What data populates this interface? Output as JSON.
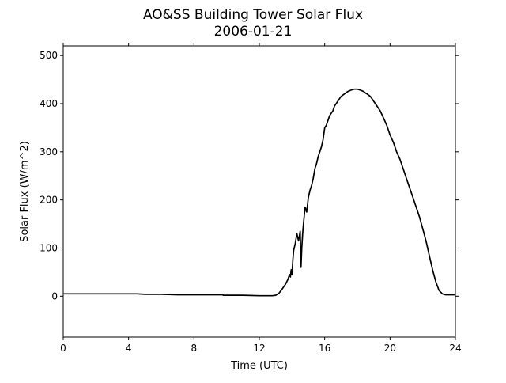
{
  "chart_data": {
    "type": "line",
    "title": "AO&SS Building Tower Solar Flux",
    "subtitle": "2006-01-21",
    "xlabel": "Time (UTC)",
    "ylabel": "Solar Flux (W/m^2)",
    "xlim": [
      0,
      24
    ],
    "ylim": [
      -85,
      520
    ],
    "x_ticks": [
      0,
      4,
      8,
      12,
      16,
      20,
      24
    ],
    "y_ticks": [
      0,
      100,
      200,
      300,
      400,
      500
    ],
    "x_tick_labels": [
      "0",
      "4",
      "8",
      "12",
      "16",
      "20",
      "24"
    ],
    "y_tick_labels": [
      "0",
      "100",
      "200",
      "300",
      "400",
      "500"
    ],
    "grid": false,
    "legend": "none",
    "line_color": "#000000",
    "series": [
      {
        "x": [
          0,
          2,
          4,
          4.5,
          5,
          6,
          7,
          7.5,
          8,
          9,
          9.75,
          9.8,
          10,
          11,
          12,
          12.5,
          12.8,
          13.0,
          13.2,
          13.4,
          13.6,
          13.75,
          13.85,
          13.9,
          13.95,
          14.0,
          14.05,
          14.1,
          14.2,
          14.3,
          14.4,
          14.5,
          14.55,
          14.6,
          14.65,
          14.7,
          14.8,
          14.9,
          15.0,
          15.1,
          15.2,
          15.3,
          15.4,
          15.5,
          15.6,
          15.7,
          15.8,
          15.9,
          16.0,
          16.1,
          16.2,
          16.3,
          16.4,
          16.5,
          16.6,
          16.8,
          17.0,
          17.2,
          17.4,
          17.6,
          17.8,
          18.0,
          18.2,
          18.4,
          18.5,
          18.6,
          18.8,
          19.0,
          19.2,
          19.4,
          19.6,
          19.8,
          20.0,
          20.2,
          20.4,
          20.6,
          20.8,
          21.0,
          21.2,
          21.4,
          21.6,
          21.8,
          22.0,
          22.2,
          22.4,
          22.6,
          22.8,
          23.0,
          23.2,
          23.4,
          23.6,
          24.0
        ],
        "y": [
          5,
          5,
          5,
          5,
          4,
          4,
          3,
          3,
          3,
          3,
          3,
          2,
          2,
          2,
          1,
          1,
          1,
          2,
          6,
          15,
          25,
          35,
          45,
          40,
          55,
          45,
          75,
          95,
          110,
          130,
          115,
          135,
          60,
          100,
          130,
          150,
          185,
          175,
          205,
          220,
          230,
          245,
          265,
          275,
          290,
          300,
          310,
          325,
          350,
          355,
          365,
          375,
          380,
          385,
          395,
          405,
          415,
          420,
          425,
          428,
          430,
          430,
          428,
          425,
          422,
          420,
          415,
          405,
          395,
          385,
          370,
          355,
          335,
          320,
          300,
          285,
          265,
          245,
          225,
          205,
          185,
          165,
          140,
          115,
          85,
          55,
          30,
          12,
          5,
          3,
          3,
          3
        ]
      }
    ]
  }
}
